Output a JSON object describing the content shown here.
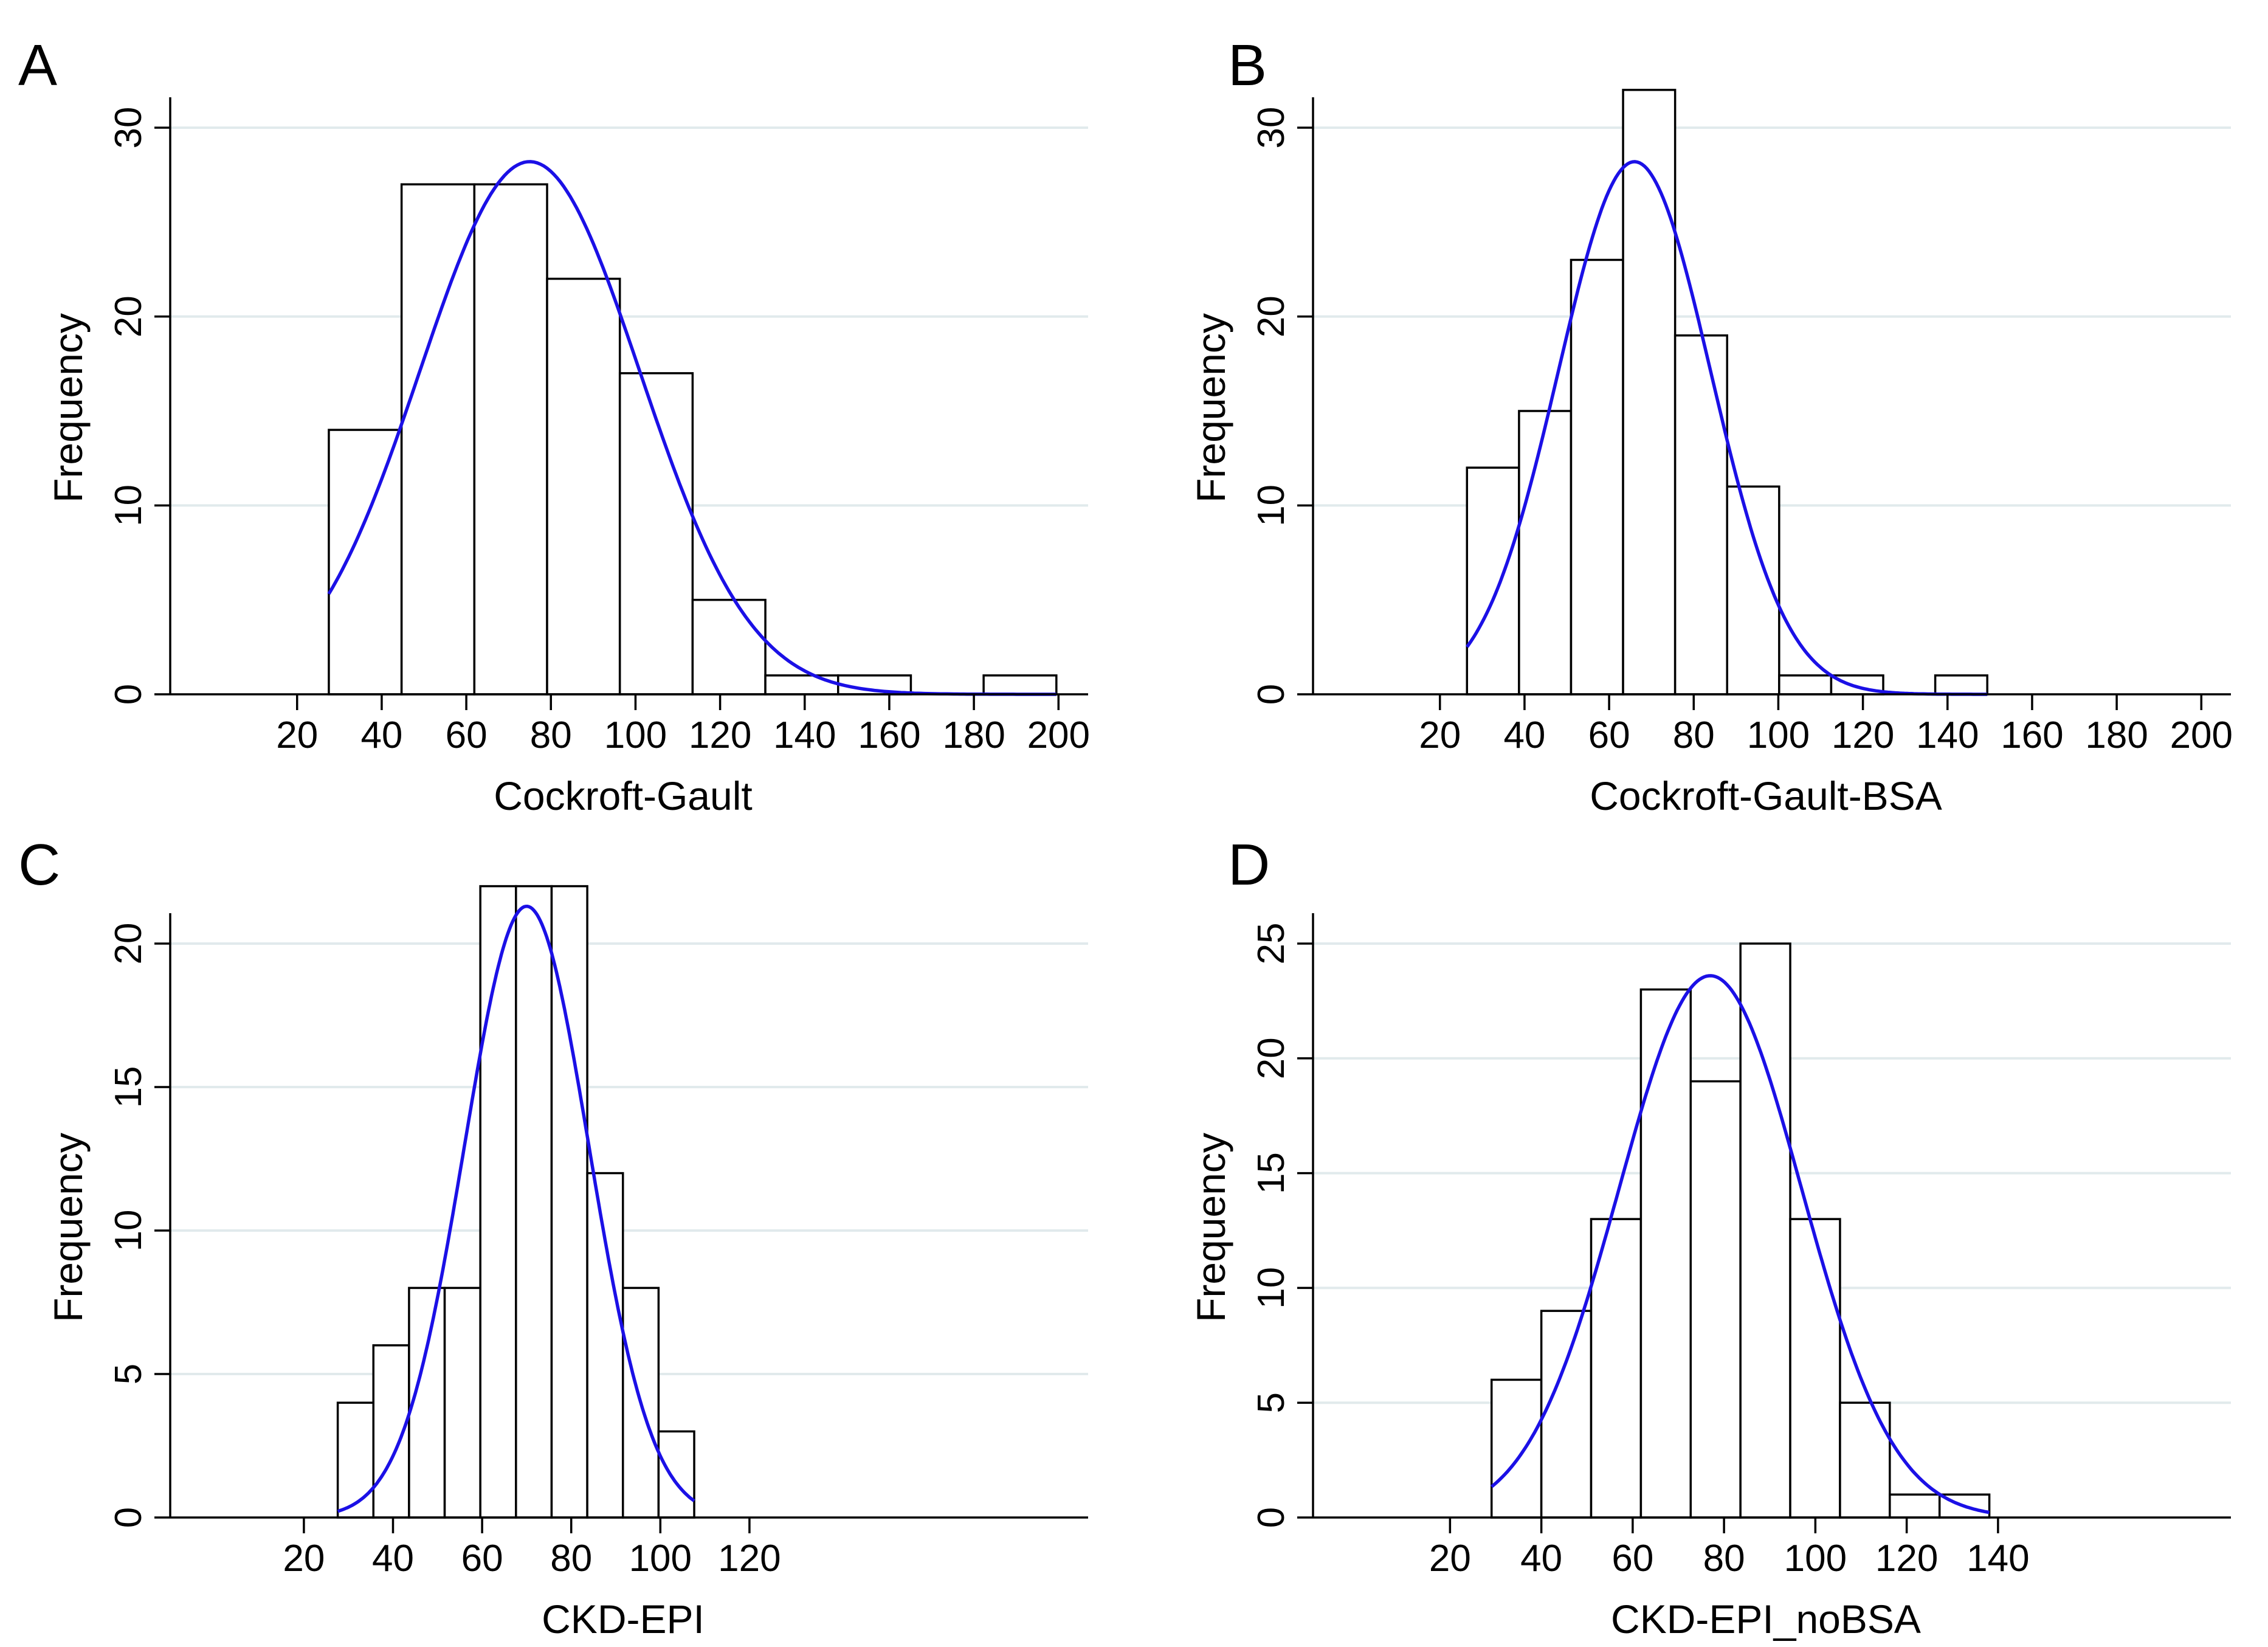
{
  "figure": {
    "panels": [
      "A",
      "B",
      "C",
      "D"
    ]
  },
  "chart_data": [
    {
      "type": "bar",
      "panel_label": "A",
      "title": "",
      "xlabel": "Cockroft-Gault",
      "ylabel": "Frequency",
      "bins": [
        {
          "start": 27.5,
          "end": 44.7,
          "count": 14
        },
        {
          "start": 44.7,
          "end": 61.9,
          "count": 27
        },
        {
          "start": 61.9,
          "end": 79.1,
          "count": 27
        },
        {
          "start": 79.1,
          "end": 96.3,
          "count": 22
        },
        {
          "start": 96.3,
          "end": 113.5,
          "count": 17
        },
        {
          "start": 113.5,
          "end": 130.7,
          "count": 5
        },
        {
          "start": 130.7,
          "end": 147.9,
          "count": 1
        },
        {
          "start": 147.9,
          "end": 165.1,
          "count": 1
        },
        {
          "start": 182.3,
          "end": 199.5,
          "count": 1
        }
      ],
      "normal_curve": {
        "mean": 75,
        "sd": 26,
        "peak": 28.2,
        "from": 27.5,
        "to": 199.5
      },
      "xticks": [
        20,
        40,
        60,
        80,
        100,
        120,
        140,
        160,
        180,
        200
      ],
      "yticks": [
        0,
        10,
        20,
        30
      ],
      "xlim": [
        -10,
        207
      ],
      "ylim": [
        0,
        30
      ],
      "grid": true
    },
    {
      "type": "bar",
      "panel_label": "B",
      "title": "",
      "xlabel": "Cockroft-Gault-BSA",
      "ylabel": "Frequency",
      "bins": [
        {
          "start": 26.4,
          "end": 38.7,
          "count": 12
        },
        {
          "start": 38.7,
          "end": 51.0,
          "count": 15
        },
        {
          "start": 51.0,
          "end": 63.3,
          "count": 23
        },
        {
          "start": 63.3,
          "end": 75.6,
          "count": 32
        },
        {
          "start": 75.6,
          "end": 87.9,
          "count": 19
        },
        {
          "start": 87.9,
          "end": 100.2,
          "count": 11
        },
        {
          "start": 100.2,
          "end": 112.5,
          "count": 1
        },
        {
          "start": 112.5,
          "end": 124.8,
          "count": 1
        },
        {
          "start": 137.1,
          "end": 149.4,
          "count": 1
        }
      ],
      "normal_curve": {
        "mean": 66,
        "sd": 18,
        "peak": 28.2,
        "from": 26.4,
        "to": 149.4
      },
      "xticks": [
        20,
        40,
        60,
        80,
        100,
        120,
        140,
        160,
        180,
        200
      ],
      "yticks": [
        0,
        10,
        20,
        30
      ],
      "xlim": [
        -10,
        207
      ],
      "ylim": [
        0,
        30
      ],
      "grid": true
    },
    {
      "type": "bar",
      "panel_label": "C",
      "title": "",
      "xlabel": "CKD-EPI",
      "ylabel": "Frequency",
      "bins": [
        {
          "start": 27.6,
          "end": 35.6,
          "count": 4
        },
        {
          "start": 35.6,
          "end": 43.6,
          "count": 6
        },
        {
          "start": 43.6,
          "end": 51.6,
          "count": 8
        },
        {
          "start": 51.6,
          "end": 59.6,
          "count": 8
        },
        {
          "start": 59.6,
          "end": 67.6,
          "count": 22
        },
        {
          "start": 67.6,
          "end": 75.6,
          "count": 22
        },
        {
          "start": 75.6,
          "end": 83.6,
          "count": 22
        },
        {
          "start": 83.6,
          "end": 91.6,
          "count": 12
        },
        {
          "start": 91.6,
          "end": 99.6,
          "count": 8
        },
        {
          "start": 99.6,
          "end": 107.6,
          "count": 3
        }
      ],
      "normal_curve": {
        "mean": 70,
        "sd": 14,
        "peak": 21.3,
        "from": 27.6,
        "to": 107.6
      },
      "xticks": [
        20,
        40,
        60,
        80,
        100,
        120
      ],
      "yticks": [
        0,
        5,
        10,
        15,
        20
      ],
      "xlim": [
        -10,
        196
      ],
      "ylim": [
        0,
        20
      ],
      "grid": true
    },
    {
      "type": "bar",
      "panel_label": "D",
      "title": "",
      "xlabel": "CKD-EPI_noBSA",
      "ylabel": "Frequency",
      "bins": [
        {
          "start": 29.1,
          "end": 40.0,
          "count": 6
        },
        {
          "start": 40.0,
          "end": 50.9,
          "count": 9
        },
        {
          "start": 50.9,
          "end": 61.8,
          "count": 13
        },
        {
          "start": 61.8,
          "end": 72.7,
          "count": 23
        },
        {
          "start": 72.7,
          "end": 83.6,
          "count": 19
        },
        {
          "start": 83.6,
          "end": 94.5,
          "count": 25
        },
        {
          "start": 94.5,
          "end": 105.4,
          "count": 13
        },
        {
          "start": 105.4,
          "end": 116.3,
          "count": 5
        },
        {
          "start": 116.3,
          "end": 127.2,
          "count": 1
        },
        {
          "start": 127.2,
          "end": 138.1,
          "count": 1
        }
      ],
      "normal_curve": {
        "mean": 77,
        "sd": 20,
        "peak": 23.6,
        "from": 29.1,
        "to": 138.1
      },
      "xticks": [
        20,
        40,
        60,
        80,
        100,
        120,
        140
      ],
      "yticks": [
        0,
        5,
        10,
        15,
        20,
        25
      ],
      "xlim": [
        -10,
        191
      ],
      "ylim": [
        0,
        25
      ],
      "grid": true
    }
  ]
}
